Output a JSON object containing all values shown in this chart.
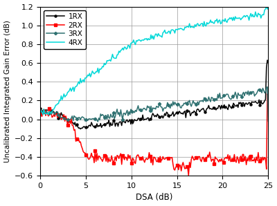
{
  "xlabel": "DSA (dB)",
  "ylabel": "Uncalibrated Integrated Gain Error (dB)",
  "xlim": [
    0,
    25
  ],
  "ylim": [
    -0.6,
    1.2
  ],
  "yticks": [
    -0.6,
    -0.4,
    -0.2,
    0,
    0.2,
    0.4,
    0.6,
    0.8,
    1.0,
    1.2
  ],
  "xticks": [
    0,
    5,
    10,
    15,
    20,
    25
  ],
  "colors": {
    "1RX": "#000000",
    "2RX": "#ff0000",
    "3RX": "#2e7070",
    "4RX": "#00d8d8"
  },
  "legend_labels": [
    "1RX",
    "2RX",
    "3RX",
    "4RX"
  ],
  "grid": true,
  "figsize": [
    4.0,
    2.98
  ],
  "dpi": 100
}
